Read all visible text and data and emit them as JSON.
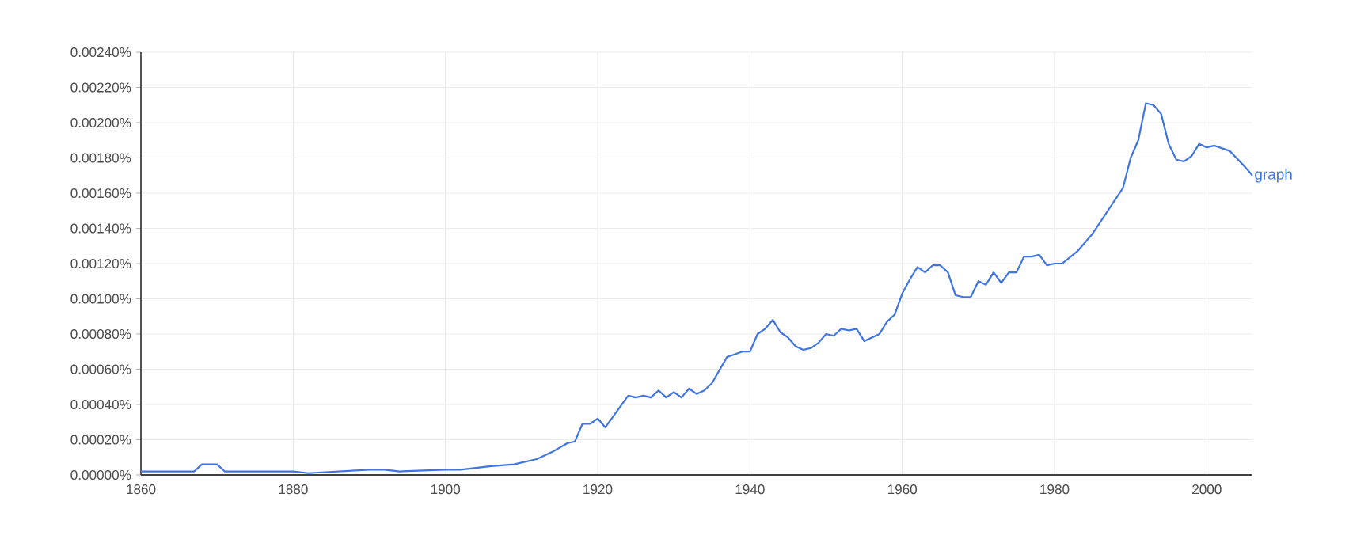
{
  "chart_data": {
    "type": "line",
    "x": [
      1860,
      1867,
      1868,
      1870,
      1871,
      1880,
      1882,
      1890,
      1892,
      1894,
      1900,
      1902,
      1906,
      1909,
      1912,
      1914,
      1916,
      1917,
      1918,
      1919,
      1920,
      1921,
      1922,
      1924,
      1925,
      1926,
      1927,
      1928,
      1929,
      1930,
      1931,
      1932,
      1933,
      1934,
      1935,
      1937,
      1939,
      1940,
      1941,
      1942,
      1943,
      1944,
      1945,
      1946,
      1947,
      1948,
      1949,
      1950,
      1951,
      1952,
      1953,
      1954,
      1955,
      1957,
      1958,
      1959,
      1960,
      1961,
      1962,
      1963,
      1964,
      1965,
      1966,
      1967,
      1968,
      1969,
      1970,
      1971,
      1972,
      1973,
      1974,
      1975,
      1976,
      1977,
      1978,
      1979,
      1980,
      1981,
      1983,
      1985,
      1987,
      1989,
      1990,
      1991,
      1992,
      1993,
      1994,
      1995,
      1996,
      1997,
      1998,
      1999,
      2000,
      2001,
      2003,
      2005,
      2006
    ],
    "series": [
      {
        "name": "graph",
        "color": "#3f74e4",
        "values": [
          2e-05,
          2e-05,
          6e-05,
          6e-05,
          2e-05,
          2e-05,
          1e-05,
          3e-05,
          3e-05,
          2e-05,
          3e-05,
          3e-05,
          5e-05,
          6e-05,
          9e-05,
          0.00013,
          0.00018,
          0.00019,
          0.00029,
          0.00029,
          0.00032,
          0.00027,
          0.00033,
          0.00045,
          0.00044,
          0.00045,
          0.00044,
          0.00048,
          0.00044,
          0.00047,
          0.00044,
          0.00049,
          0.00046,
          0.00048,
          0.00052,
          0.00067,
          0.0007,
          0.0007,
          0.0008,
          0.00083,
          0.00088,
          0.00081,
          0.00078,
          0.00073,
          0.00071,
          0.00072,
          0.00075,
          0.0008,
          0.00079,
          0.00083,
          0.00082,
          0.00083,
          0.00076,
          0.0008,
          0.00087,
          0.00091,
          0.00103,
          0.00111,
          0.00118,
          0.00115,
          0.00119,
          0.00119,
          0.00115,
          0.00102,
          0.00101,
          0.00101,
          0.0011,
          0.00108,
          0.00115,
          0.00109,
          0.00115,
          0.00115,
          0.00124,
          0.00124,
          0.00125,
          0.00119,
          0.0012,
          0.0012,
          0.00127,
          0.00137,
          0.0015,
          0.00163,
          0.0018,
          0.0019,
          0.00211,
          0.0021,
          0.00205,
          0.00188,
          0.00179,
          0.00178,
          0.00181,
          0.00188,
          0.00186,
          0.00187,
          0.00184,
          0.00175,
          0.0017
        ]
      }
    ],
    "xlim": [
      1860,
      2006
    ],
    "xticks": [
      1860,
      1880,
      1900,
      1920,
      1940,
      1960,
      1980,
      2000
    ],
    "ylim": [
      0,
      0.0024
    ],
    "yticks": [
      {
        "value": 0,
        "label": "0.00000%"
      },
      {
        "value": 0.0002,
        "label": "0.00020%"
      },
      {
        "value": 0.0004,
        "label": "0.00040%"
      },
      {
        "value": 0.0006,
        "label": "0.00060%"
      },
      {
        "value": 0.0008,
        "label": "0.00080%"
      },
      {
        "value": 0.001,
        "label": "0.00100%"
      },
      {
        "value": 0.0012,
        "label": "0.00120%"
      },
      {
        "value": 0.0014,
        "label": "0.00140%"
      },
      {
        "value": 0.0016,
        "label": "0.00160%"
      },
      {
        "value": 0.0018,
        "label": "0.00180%"
      },
      {
        "value": 0.002,
        "label": "0.00200%"
      },
      {
        "value": 0.0022,
        "label": "0.00220%"
      },
      {
        "value": 0.0024,
        "label": "0.00240%"
      }
    ],
    "grid": true,
    "marker": "none",
    "line_style": "solid"
  }
}
